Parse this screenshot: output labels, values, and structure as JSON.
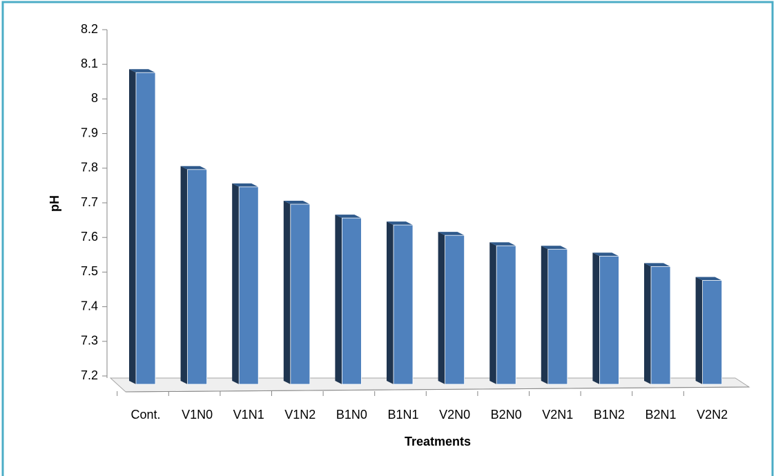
{
  "chart_data": {
    "type": "bar3d",
    "y_label": "pH",
    "x_label": "Treatments",
    "categories": [
      "Cont.",
      "V1N0",
      "V1N1",
      "V1N2",
      "B1N0",
      "B1N1",
      "V2N0",
      "B2N0",
      "V2N1",
      "B1N2",
      "B2N1",
      "V2N2"
    ],
    "values": [
      8.08,
      7.8,
      7.75,
      7.7,
      7.66,
      7.64,
      7.61,
      7.58,
      7.57,
      7.55,
      7.52,
      7.48
    ],
    "color": "#4f81bd",
    "ylim": [
      7.2,
      8.2
    ],
    "yticks": [
      7.2,
      7.3,
      7.4,
      7.5,
      7.6,
      7.7,
      7.8,
      7.9,
      8,
      8.1,
      8.2
    ]
  }
}
